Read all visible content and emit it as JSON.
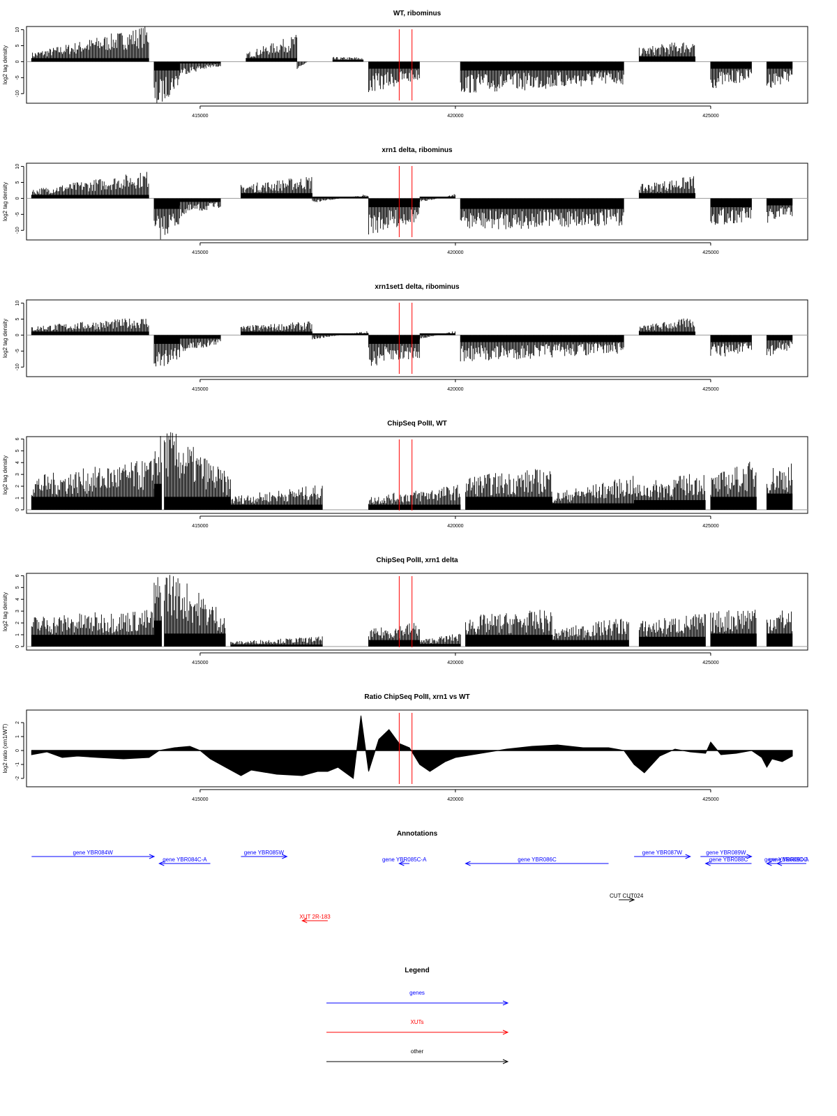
{
  "chart_data": [
    {
      "type": "bar",
      "id": "wt",
      "title": "WT, ribominus",
      "ylabel": "log2 tag density",
      "ylim": [
        -13,
        11
      ],
      "yticks": [
        10,
        5,
        0,
        -5,
        -10
      ],
      "xlim": [
        411600,
        426900
      ],
      "xticks": [
        415000,
        420000,
        425000
      ],
      "red_lines": [
        418900,
        419150
      ],
      "segments": [
        {
          "x": [
            411700,
            414000
          ],
          "y": [
            2,
            8
          ]
        },
        {
          "x": [
            414100,
            414600
          ],
          "y": [
            -11,
            -5
          ]
        },
        {
          "x": [
            414600,
            415400
          ],
          "y": [
            -3,
            -1
          ]
        },
        {
          "x": [
            415900,
            416900
          ],
          "y": [
            2,
            6
          ]
        },
        {
          "x": [
            416900,
            417100
          ],
          "y": [
            -2,
            0
          ]
        },
        {
          "x": [
            417600,
            418200
          ],
          "y": [
            1,
            1
          ]
        },
        {
          "x": [
            418300,
            419300
          ],
          "y": [
            -7,
            -4
          ]
        },
        {
          "x": [
            420100,
            423300
          ],
          "y": [
            -7,
            -5
          ]
        },
        {
          "x": [
            423600,
            424700
          ],
          "y": [
            3,
            5
          ]
        },
        {
          "x": [
            425000,
            425800
          ],
          "y": [
            -6,
            -4
          ]
        },
        {
          "x": [
            426100,
            426600
          ],
          "y": [
            -6,
            -4
          ]
        }
      ]
    },
    {
      "type": "bar",
      "id": "xrn1",
      "title": "xrn1 delta, ribominus",
      "ylabel": "log2 tag density",
      "ylim": [
        -13,
        11
      ],
      "yticks": [
        10,
        5,
        0,
        -5,
        -10
      ],
      "xlim": [
        411600,
        426900
      ],
      "xticks": [
        415000,
        420000,
        425000
      ],
      "red_lines": [
        418900,
        419150
      ],
      "segments": [
        {
          "x": [
            411700,
            414000
          ],
          "y": [
            2,
            6
          ]
        },
        {
          "x": [
            414100,
            414600
          ],
          "y": [
            -10,
            -6
          ]
        },
        {
          "x": [
            414600,
            415400
          ],
          "y": [
            -4,
            -2
          ]
        },
        {
          "x": [
            415800,
            417200
          ],
          "y": [
            3,
            5
          ]
        },
        {
          "x": [
            417200,
            418300
          ],
          "y": [
            -1,
            1
          ]
        },
        {
          "x": [
            418300,
            419300
          ],
          "y": [
            -8,
            -5
          ]
        },
        {
          "x": [
            419300,
            420000
          ],
          "y": [
            -1,
            1
          ]
        },
        {
          "x": [
            420100,
            423300
          ],
          "y": [
            -7,
            -6
          ]
        },
        {
          "x": [
            423600,
            424700
          ],
          "y": [
            3,
            5
          ]
        },
        {
          "x": [
            425000,
            425800
          ],
          "y": [
            -6,
            -5
          ]
        },
        {
          "x": [
            426100,
            426600
          ],
          "y": [
            -6,
            -4
          ]
        }
      ]
    },
    {
      "type": "bar",
      "id": "xrn1set1",
      "title": "xrn1set1 delta, ribominus",
      "ylabel": "log2 tag density",
      "ylim": [
        -13,
        11
      ],
      "yticks": [
        10,
        5,
        0,
        -5,
        -10
      ],
      "xlim": [
        411600,
        426900
      ],
      "xticks": [
        415000,
        420000,
        425000
      ],
      "red_lines": [
        418900,
        419150
      ],
      "segments": [
        {
          "x": [
            411700,
            414000
          ],
          "y": [
            2,
            4
          ]
        },
        {
          "x": [
            414100,
            414600
          ],
          "y": [
            -8,
            -5
          ]
        },
        {
          "x": [
            414600,
            415400
          ],
          "y": [
            -4,
            -2
          ]
        },
        {
          "x": [
            415800,
            417200
          ],
          "y": [
            2,
            3
          ]
        },
        {
          "x": [
            417200,
            418300
          ],
          "y": [
            -1,
            1
          ]
        },
        {
          "x": [
            418300,
            419300
          ],
          "y": [
            -7,
            -5
          ]
        },
        {
          "x": [
            419300,
            420000
          ],
          "y": [
            -1,
            1
          ]
        },
        {
          "x": [
            420100,
            423300
          ],
          "y": [
            -6,
            -4
          ]
        },
        {
          "x": [
            423600,
            424700
          ],
          "y": [
            2,
            4
          ]
        },
        {
          "x": [
            425000,
            425800
          ],
          "y": [
            -5,
            -4
          ]
        },
        {
          "x": [
            426100,
            426600
          ],
          "y": [
            -5,
            -3
          ]
        }
      ]
    },
    {
      "type": "bar",
      "id": "chip_wt",
      "title": "ChipSeq PolII, WT",
      "ylabel": "log2 tag density",
      "ylim": [
        -0.3,
        6.2
      ],
      "yticks": [
        0,
        1,
        2,
        3,
        4,
        5,
        6
      ],
      "xlim": [
        411600,
        426900
      ],
      "xticks": [
        415000,
        420000,
        425000
      ],
      "red_lines": [
        418900,
        419150
      ],
      "segments": [
        {
          "x": [
            411700,
            414100
          ],
          "y": [
            2,
            3
          ]
        },
        {
          "x": [
            414100,
            414250
          ],
          "y": [
            4,
            4.5
          ]
        },
        {
          "x": [
            414300,
            415600
          ],
          "y": [
            5,
            2
          ]
        },
        {
          "x": [
            415600,
            417400
          ],
          "y": [
            0.8,
            1.5
          ]
        },
        {
          "x": [
            418300,
            420100
          ],
          "y": [
            0.8,
            1.5
          ]
        },
        {
          "x": [
            420200,
            421900
          ],
          "y": [
            2,
            2.5
          ]
        },
        {
          "x": [
            421900,
            423500
          ],
          "y": [
            1,
            2
          ]
        },
        {
          "x": [
            423500,
            424900
          ],
          "y": [
            1.5,
            2.3
          ]
        },
        {
          "x": [
            425000,
            425900
          ],
          "y": [
            2,
            3
          ]
        },
        {
          "x": [
            426100,
            426600
          ],
          "y": [
            2.5,
            2.8
          ]
        }
      ]
    },
    {
      "type": "bar",
      "id": "chip_xrn1",
      "title": "ChipSeq PolII, xrn1 delta",
      "ylabel": "log2 tag density",
      "ylim": [
        -0.3,
        6.2
      ],
      "yticks": [
        0,
        1,
        2,
        3,
        4,
        5,
        6
      ],
      "xlim": [
        411600,
        426900
      ],
      "xticks": [
        415000,
        420000,
        425000
      ],
      "red_lines": [
        418900,
        419150
      ],
      "segments": [
        {
          "x": [
            411700,
            414100
          ],
          "y": [
            1.8,
            2.2
          ]
        },
        {
          "x": [
            414100,
            414250
          ],
          "y": [
            4,
            4.5
          ]
        },
        {
          "x": [
            414300,
            415500
          ],
          "y": [
            4.8,
            2
          ]
        },
        {
          "x": [
            415600,
            417400
          ],
          "y": [
            0.3,
            0.6
          ]
        },
        {
          "x": [
            418300,
            419300
          ],
          "y": [
            1,
            1.5
          ]
        },
        {
          "x": [
            419300,
            420100
          ],
          "y": [
            0.4,
            0.8
          ]
        },
        {
          "x": [
            420200,
            421900
          ],
          "y": [
            1.8,
            2.2
          ]
        },
        {
          "x": [
            421900,
            423400
          ],
          "y": [
            1,
            1.8
          ]
        },
        {
          "x": [
            423600,
            424900
          ],
          "y": [
            1.5,
            2
          ]
        },
        {
          "x": [
            425000,
            425900
          ],
          "y": [
            2,
            2.5
          ]
        },
        {
          "x": [
            426100,
            426600
          ],
          "y": [
            2,
            2.3
          ]
        }
      ]
    },
    {
      "type": "area",
      "id": "ratio",
      "title": "Ratio ChipSeq PolII, xrn1 vs WT",
      "ylabel": "log2 ratio (xrn1/WT)",
      "ylim": [
        -2.6,
        2.9
      ],
      "yticks": [
        2,
        1,
        0,
        -1,
        -2
      ],
      "xlim": [
        411600,
        426900
      ],
      "xticks": [
        415000,
        420000,
        425000
      ],
      "red_lines": [
        418900,
        419150
      ],
      "x": [
        411700,
        412000,
        412300,
        412600,
        413000,
        413500,
        414000,
        414200,
        414500,
        414800,
        415000,
        415200,
        415500,
        415800,
        416000,
        416500,
        417000,
        417300,
        417500,
        417700,
        418000,
        418150,
        418300,
        418500,
        418700,
        418900,
        419100,
        419300,
        419500,
        419800,
        420000,
        420500,
        421000,
        421500,
        422000,
        422500,
        423000,
        423300,
        423500,
        423700,
        424000,
        424300,
        424600,
        424900,
        425000,
        425200,
        425500,
        425800,
        426000,
        426100,
        426200,
        426400,
        426600
      ],
      "y": [
        -0.3,
        -0.1,
        -0.5,
        -0.4,
        -0.5,
        -0.6,
        -0.5,
        0.0,
        0.2,
        0.3,
        0.0,
        -0.6,
        -1.2,
        -1.8,
        -1.4,
        -1.7,
        -1.8,
        -1.5,
        -1.5,
        -1.2,
        -2.0,
        2.5,
        -1.5,
        0.8,
        1.5,
        0.5,
        0.2,
        -1.0,
        -1.5,
        -0.8,
        -0.5,
        -0.2,
        0.1,
        0.3,
        0.4,
        0.2,
        0.2,
        0.0,
        -1.0,
        -1.6,
        -0.4,
        0.1,
        -0.1,
        -0.2,
        0.6,
        -0.3,
        -0.2,
        0.0,
        -0.5,
        -1.2,
        -0.6,
        -0.8,
        -0.4
      ]
    }
  ],
  "annotations": {
    "title": "Annotations",
    "features": [
      {
        "label": "gene YBR084W",
        "start": 411700,
        "end": 414100,
        "dir": "right",
        "row": 0,
        "color": "#0000ff"
      },
      {
        "label": "gene YBR084C-A",
        "start": 414200,
        "end": 415200,
        "dir": "left",
        "row": 1,
        "color": "#0000ff"
      },
      {
        "label": "gene YBR085W",
        "start": 415800,
        "end": 416700,
        "dir": "right",
        "row": 0,
        "color": "#0000ff"
      },
      {
        "label": "gene YBR085C-A",
        "start": 418900,
        "end": 419100,
        "dir": "left",
        "row": 1,
        "color": "#0000ff"
      },
      {
        "label": "gene YBR086C",
        "start": 420200,
        "end": 423000,
        "dir": "left",
        "row": 1,
        "color": "#0000ff"
      },
      {
        "label": "gene YBR087W",
        "start": 423500,
        "end": 424600,
        "dir": "right",
        "row": 0,
        "color": "#0000ff"
      },
      {
        "label": "gene YBR089W",
        "start": 424800,
        "end": 425800,
        "dir": "right",
        "row": 0,
        "color": "#0000ff"
      },
      {
        "label": "gene YBR088C",
        "start": 424900,
        "end": 425800,
        "dir": "left",
        "row": 1,
        "color": "#0000ff"
      },
      {
        "label": "gene YBR089C-A",
        "start": 426100,
        "end": 426900,
        "dir": "left",
        "row": 1,
        "color": "#0000ff"
      },
      {
        "label": "gene YBR090C",
        "start": 426300,
        "end": 426900,
        "dir": "left",
        "row": 1,
        "color": "#0000ff"
      },
      {
        "label": "CUT CUT024",
        "start": 423200,
        "end": 423500,
        "dir": "right",
        "row": 2,
        "color": "#000000"
      },
      {
        "label": "XUT 2R-183",
        "start": 417000,
        "end": 417500,
        "dir": "left",
        "row": 3,
        "color": "#ff0000"
      }
    ]
  },
  "legend": {
    "title": "Legend",
    "items": [
      {
        "label": "genes",
        "color": "#0000ff"
      },
      {
        "label": "XUTs",
        "color": "#ff0000"
      },
      {
        "label": "other",
        "color": "#000000"
      }
    ]
  }
}
